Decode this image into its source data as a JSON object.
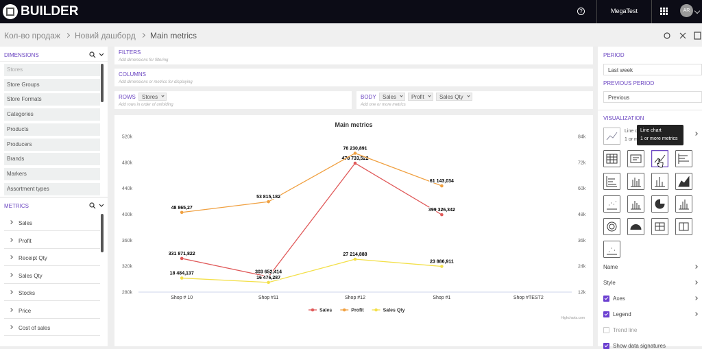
{
  "header": {
    "logo": "BUILDER",
    "help": "?",
    "user": "MegaTest",
    "avatar": "AR"
  },
  "breadcrumbs": [
    "Кол-во продаж",
    "Новий дашборд",
    "Main metrics"
  ],
  "dimensions": {
    "title": "DIMENSIONS",
    "items": [
      "Stores",
      "Store Groups",
      "Store Formats",
      "Categories",
      "Products",
      "Producers",
      "Brands",
      "Markers",
      "Assortment types"
    ]
  },
  "metrics": {
    "title": "METRICS",
    "items": [
      "Sales",
      "Profit",
      "Receipt Qty",
      "Sales Qty",
      "Stocks",
      "Price",
      "Cost of sales"
    ]
  },
  "filters": {
    "title": "FILTERS",
    "placeholder": "Add dimensions for filtering"
  },
  "columns": {
    "title": "COLUMNS",
    "placeholder": "Add dimensions or metrics for displaying"
  },
  "rows": {
    "title": "ROWS",
    "chips": [
      "Stores"
    ],
    "placeholder": "Add rows in order of unfolding"
  },
  "body": {
    "title": "BODY",
    "chips": [
      "Sales",
      "Profit",
      "Sales Qty"
    ],
    "placeholder": "Add one or more metrics"
  },
  "chart_data": {
    "type": "line",
    "title": "Main metrics",
    "categories": [
      "Shop # 10",
      "Shop #11",
      "Shop #12",
      "Shop #1",
      "Shop #TEST2"
    ],
    "series": [
      {
        "name": "Sales",
        "color": "#e05a5a",
        "axis": "y",
        "values": [
          331871.822,
          303652.414,
          478733.522,
          399326.342,
          null
        ],
        "value_labels": [
          "331 871,822",
          "303 652,414",
          "478 733,522",
          "399 326,342",
          null
        ]
      },
      {
        "name": "Profit",
        "color": "#f0a040",
        "axis": "y2",
        "values": [
          48865.27,
          53815.182,
          76230.891,
          61143.034,
          null
        ],
        "value_labels": [
          "48 865,27",
          "53 815,182",
          "76 230,891",
          "61 143,034",
          null
        ]
      },
      {
        "name": "Sales Qty",
        "color": "#f3e04a",
        "axis": "y2",
        "values": [
          18484.137,
          16476.287,
          27214.888,
          23886.911,
          null
        ],
        "value_labels": [
          "18 484,137",
          "16 476,287",
          "27 214,888",
          "23 886,911",
          null
        ]
      }
    ],
    "ylim": [
      280000,
      520000
    ],
    "yticks": [
      {
        "value": 280000,
        "label": "280k"
      },
      {
        "value": 320000,
        "label": "320k"
      },
      {
        "value": 360000,
        "label": "360k"
      },
      {
        "value": 400000,
        "label": "400k"
      },
      {
        "value": 440000,
        "label": "440k"
      },
      {
        "value": 480000,
        "label": "480k"
      },
      {
        "value": 520000,
        "label": "520k"
      }
    ],
    "y2lim": [
      12000,
      84000
    ],
    "y2ticks": [
      {
        "value": 12000,
        "label": "12k"
      },
      {
        "value": 24000,
        "label": "24k"
      },
      {
        "value": 36000,
        "label": "36k"
      },
      {
        "value": 48000,
        "label": "48k"
      },
      {
        "value": 60000,
        "label": "60k"
      },
      {
        "value": 72000,
        "label": "72k"
      },
      {
        "value": 84000,
        "label": "84k"
      }
    ],
    "grid": false,
    "legend": "bottom",
    "credit": "Highcharts.com"
  },
  "settings": {
    "period": {
      "title": "PERIOD",
      "value": "Last week"
    },
    "previous_period": {
      "title": "PREVIOUS PERIOD",
      "value": "Previous"
    },
    "visualization": {
      "title": "VISUALIZATION",
      "selected": "Line chart",
      "selected_hint": "1 or more metrics",
      "tooltip_title": "Line chart",
      "tooltip_text": "1 or more metrics"
    },
    "options": [
      {
        "label": "Name"
      },
      {
        "label": "Style"
      },
      {
        "label": "Axes",
        "checked": true
      },
      {
        "label": "Legend",
        "checked": true
      },
      {
        "label": "Trend line",
        "checked": false
      },
      {
        "label": "Show data signatures",
        "checked": true
      }
    ]
  }
}
